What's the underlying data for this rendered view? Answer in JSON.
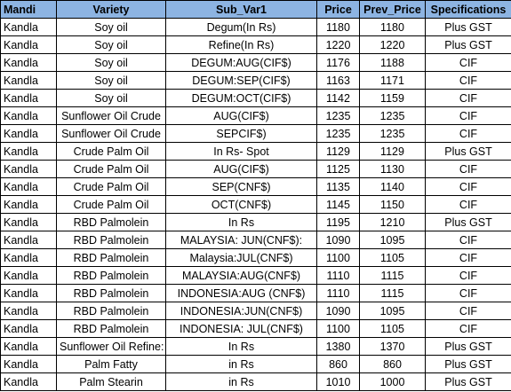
{
  "table": {
    "columns": [
      "Mandi",
      "Variety",
      "Sub_Var1",
      "Price",
      "Prev_Price",
      "Specifications"
    ],
    "rows": [
      [
        "Kandla",
        "Soy oil",
        "Degum(In Rs)",
        1180,
        1180,
        "Plus GST"
      ],
      [
        "Kandla",
        "Soy oil",
        "Refine(In Rs)",
        1220,
        1220,
        "Plus GST"
      ],
      [
        "Kandla",
        "Soy oil",
        "DEGUM:AUG(CIF$)",
        1176,
        1188,
        "CIF"
      ],
      [
        "Kandla",
        "Soy oil",
        "DEGUM:SEP(CIF$)",
        1163,
        1171,
        "CIF"
      ],
      [
        "Kandla",
        "Soy oil",
        "DEGUM:OCT(CIF$)",
        1142,
        1159,
        "CIF"
      ],
      [
        "Kandla",
        "Sunflower Oil Crude",
        "AUG(CIF$)",
        1235,
        1235,
        "CIF"
      ],
      [
        "Kandla",
        "Sunflower Oil Crude",
        "SEPCIF$)",
        1235,
        1235,
        "CIF"
      ],
      [
        "Kandla",
        "Crude Palm Oil",
        "In Rs- Spot",
        1129,
        1129,
        "Plus GST"
      ],
      [
        "Kandla",
        "Crude Palm Oil",
        "AUG(CIF$)",
        1125,
        1130,
        "CIF"
      ],
      [
        "Kandla",
        "Crude Palm Oil",
        "SEP(CNF$)",
        1135,
        1140,
        "CIF"
      ],
      [
        "Kandla",
        "Crude Palm Oil",
        "OCT(CNF$)",
        1145,
        1150,
        "CIF"
      ],
      [
        "Kandla",
        "RBD Palmolein",
        "In Rs",
        1195,
        1210,
        "Plus GST"
      ],
      [
        "Kandla",
        "RBD Palmolein",
        "MALAYSIA: JUN(CNF$):",
        1090,
        1095,
        "CIF"
      ],
      [
        "Kandla",
        "RBD Palmolein",
        "Malaysia:JUL(CNF$)",
        1100,
        1105,
        "CIF"
      ],
      [
        "Kandla",
        "RBD Palmolein",
        "MALAYSIA:AUG(CNF$)",
        1110,
        1115,
        "CIF"
      ],
      [
        "Kandla",
        "RBD Palmolein",
        "INDONESIA:AUG (CNF$)",
        1110,
        1115,
        "CIF"
      ],
      [
        "Kandla",
        "RBD Palmolein",
        "INDONESIA:JUN(CNF$)",
        1090,
        1095,
        "CIF"
      ],
      [
        "Kandla",
        "RBD Palmolein",
        "INDONESIA: JUL(CNF$)",
        1100,
        1105,
        "CIF"
      ],
      [
        "Kandla",
        "Sunflower Oil Refine:",
        "In Rs",
        1380,
        1370,
        "Plus GST"
      ],
      [
        "Kandla",
        "Palm Fatty",
        "in Rs",
        860,
        860,
        "Plus GST"
      ],
      [
        "Kandla",
        "Palm Stearin",
        "in Rs",
        1010,
        1000,
        "Plus GST"
      ]
    ]
  }
}
